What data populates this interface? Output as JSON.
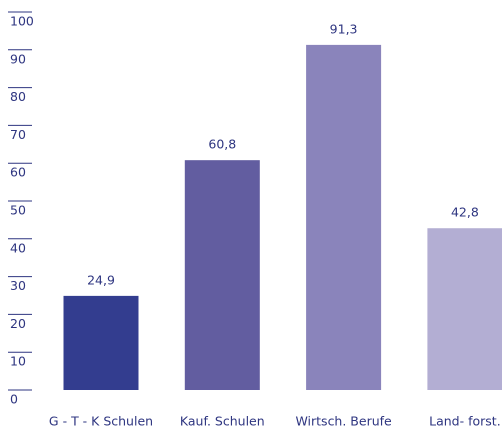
{
  "chart_data": {
    "type": "bar",
    "categories": [
      "G - T - K Schulen",
      "Kauf. Schulen",
      "Wirtsch. Berufe",
      "Land- forst."
    ],
    "values": [
      24.9,
      60.8,
      91.3,
      42.8
    ],
    "value_labels": [
      "24,9",
      "60,8",
      "91,3",
      "42,8"
    ],
    "colors": [
      "#333d8f",
      "#625da0",
      "#8a84bb",
      "#b3aed3"
    ],
    "ylim": [
      0,
      100
    ],
    "yticks": [
      0,
      10,
      20,
      30,
      40,
      50,
      60,
      70,
      80,
      90,
      100
    ],
    "grid": false
  }
}
